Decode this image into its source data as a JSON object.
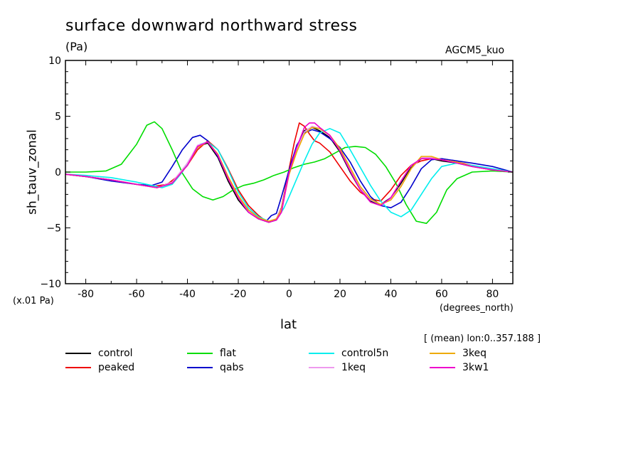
{
  "chart_data": {
    "type": "line",
    "title": "surface downward northward stress",
    "units": "(Pa)",
    "source_label": "AGCM5_kuo",
    "ylabel": "sh_tauv_zonal",
    "xlabel": "lat",
    "x_units": "(degrees_north)",
    "y_scale_note": "(x.01 Pa)",
    "stat_note": "[ (mean) lon:0..357.188 ]",
    "xlim": [
      -88,
      88
    ],
    "ylim": [
      -10,
      10
    ],
    "xticks": [
      -80,
      -60,
      -40,
      -20,
      0,
      20,
      40,
      60,
      80
    ],
    "xtick_labels": [
      "-80",
      "-60",
      "-40",
      "-20",
      "0",
      "20",
      "40",
      "60",
      "80"
    ],
    "yticks": [
      10,
      5,
      0,
      -5,
      -10
    ],
    "ytick_labels": [
      "10",
      "5",
      "0",
      "−5",
      "−10"
    ],
    "series": [
      {
        "name": "control",
        "color": "#000000",
        "x": [
          -88,
          -80,
          -70,
          -60,
          -52,
          -45,
          -40,
          -36,
          -32,
          -28,
          -24,
          -20,
          -16,
          -12,
          -8,
          -5,
          -3,
          0,
          3,
          6,
          9,
          12,
          16,
          20,
          24,
          28,
          32,
          36,
          40,
          44,
          48,
          52,
          56,
          60,
          66,
          72,
          80,
          88
        ],
        "y": [
          -0.2,
          -0.4,
          -0.7,
          -1.1,
          -1.4,
          -0.8,
          0.8,
          2.3,
          2.6,
          1.3,
          -0.8,
          -2.5,
          -3.6,
          -4.2,
          -4.5,
          -4.3,
          -3.2,
          0.2,
          2.3,
          3.7,
          4.0,
          3.7,
          3.1,
          1.8,
          0,
          -1.6,
          -2.6,
          -2.9,
          -2.3,
          -1.0,
          0.4,
          1.2,
          1.2,
          1.0,
          0.8,
          0.5,
          0.2,
          0
        ]
      },
      {
        "name": "peaked",
        "color": "#ee0000",
        "x": [
          -88,
          -80,
          -70,
          -60,
          -54,
          -48,
          -44,
          -40,
          -36,
          -32,
          -28,
          -24,
          -20,
          -16,
          -12,
          -9,
          -7,
          -5,
          -3,
          0,
          2,
          4,
          6,
          8,
          10,
          12,
          16,
          20,
          24,
          28,
          32,
          36,
          40,
          44,
          48,
          52,
          56,
          60,
          66,
          72,
          80,
          88
        ],
        "y": [
          -0.2,
          -0.4,
          -0.7,
          -1.1,
          -1.3,
          -1.1,
          -0.4,
          0.6,
          2.0,
          2.8,
          2.0,
          0.3,
          -1.6,
          -3.0,
          -3.9,
          -4.4,
          -4.4,
          -4.2,
          -3.2,
          0.3,
          2.6,
          4.4,
          4.1,
          3.4,
          2.8,
          2.6,
          1.8,
          0.5,
          -0.8,
          -1.8,
          -2.4,
          -2.6,
          -1.6,
          -0.3,
          0.6,
          1.0,
          1.2,
          1.1,
          0.9,
          0.6,
          0.2,
          0
        ]
      },
      {
        "name": "qabs",
        "color": "#0000cc",
        "x": [
          -88,
          -80,
          -70,
          -60,
          -54,
          -50,
          -46,
          -42,
          -38,
          -35,
          -32,
          -28,
          -24,
          -20,
          -16,
          -12,
          -9,
          -7,
          -5,
          -3,
          0,
          3,
          6,
          9,
          12,
          16,
          20,
          24,
          28,
          32,
          36,
          40,
          44,
          48,
          52,
          56,
          60,
          66,
          72,
          80,
          88
        ],
        "y": [
          -0.2,
          -0.4,
          -0.8,
          -1.1,
          -1.2,
          -0.9,
          0.5,
          2.0,
          3.1,
          3.3,
          2.8,
          1.4,
          -0.5,
          -2.2,
          -3.4,
          -4.1,
          -4.4,
          -3.9,
          -3.7,
          -2.2,
          0.2,
          2.4,
          3.5,
          3.8,
          3.6,
          3.0,
          2.2,
          0.9,
          -0.8,
          -2.2,
          -3.0,
          -3.2,
          -2.7,
          -1.3,
          0.3,
          1.1,
          1.2,
          1.0,
          0.8,
          0.5,
          0
        ]
      },
      {
        "name": "flat",
        "color": "#00dd00",
        "x": [
          -88,
          -80,
          -72,
          -66,
          -60,
          -56,
          -53,
          -50,
          -46,
          -42,
          -38,
          -34,
          -30,
          -26,
          -22,
          -18,
          -14,
          -10,
          -6,
          -2,
          2,
          6,
          10,
          14,
          18,
          22,
          26,
          30,
          34,
          38,
          42,
          46,
          50,
          54,
          58,
          62,
          66,
          72,
          80,
          88
        ],
        "y": [
          0,
          0,
          0.1,
          0.7,
          2.5,
          4.2,
          4.5,
          3.9,
          2.0,
          -0.1,
          -1.5,
          -2.2,
          -2.5,
          -2.2,
          -1.6,
          -1.2,
          -1.0,
          -0.7,
          -0.3,
          0,
          0.4,
          0.7,
          0.9,
          1.2,
          1.7,
          2.2,
          2.3,
          2.2,
          1.6,
          0.5,
          -1.0,
          -2.9,
          -4.4,
          -4.6,
          -3.6,
          -1.6,
          -0.6,
          0,
          0.1,
          0
        ]
      },
      {
        "name": "control5n",
        "color": "#00eeee",
        "x": [
          -88,
          -80,
          -70,
          -60,
          -54,
          -50,
          -46,
          -42,
          -38,
          -35,
          -32,
          -28,
          -24,
          -20,
          -16,
          -12,
          -8,
          -5,
          -2,
          0,
          3,
          6,
          9,
          12,
          16,
          20,
          24,
          28,
          32,
          36,
          40,
          44,
          48,
          52,
          56,
          60,
          66,
          72,
          80,
          88
        ],
        "y": [
          -0.2,
          -0.3,
          -0.5,
          -0.9,
          -1.2,
          -1.4,
          -1.1,
          0.0,
          1.5,
          2.5,
          2.7,
          2.0,
          0.2,
          -1.8,
          -3.2,
          -4.0,
          -4.4,
          -4.3,
          -3.2,
          -2.2,
          -0.6,
          1.0,
          2.5,
          3.5,
          3.9,
          3.5,
          2.0,
          0.4,
          -1.2,
          -2.6,
          -3.6,
          -4.0,
          -3.4,
          -2.0,
          -0.6,
          0.5,
          0.8,
          0.6,
          0.3,
          0
        ]
      },
      {
        "name": "1keq",
        "color": "#ee99ee",
        "x": [
          -88,
          -80,
          -70,
          -60,
          -52,
          -46,
          -40,
          -36,
          -32,
          -28,
          -24,
          -20,
          -16,
          -12,
          -8,
          -5,
          -3,
          0,
          3,
          6,
          9,
          12,
          16,
          20,
          24,
          28,
          32,
          36,
          40,
          44,
          48,
          52,
          56,
          60,
          66,
          72,
          80,
          88
        ],
        "y": [
          -0.2,
          -0.4,
          -0.7,
          -1.1,
          -1.4,
          -0.9,
          0.8,
          2.4,
          2.7,
          1.5,
          -0.5,
          -2.2,
          -3.5,
          -4.1,
          -4.4,
          -4.2,
          -3.3,
          0,
          2.0,
          3.6,
          4.1,
          3.9,
          3.2,
          2.0,
          0.2,
          -1.4,
          -2.5,
          -2.9,
          -2.4,
          -1.2,
          0.3,
          1.3,
          1.3,
          1.1,
          0.9,
          0.5,
          0.2,
          0
        ]
      },
      {
        "name": "3keq",
        "color": "#eeaa00",
        "x": [
          -88,
          -80,
          -70,
          -60,
          -52,
          -46,
          -40,
          -36,
          -32,
          -28,
          -24,
          -20,
          -16,
          -12,
          -8,
          -5,
          -3,
          0,
          3,
          6,
          9,
          12,
          16,
          20,
          24,
          28,
          32,
          36,
          40,
          44,
          48,
          52,
          56,
          60,
          66,
          72,
          80,
          88
        ],
        "y": [
          -0.2,
          -0.4,
          -0.7,
          -1.1,
          -1.4,
          -1.0,
          0.6,
          2.2,
          2.7,
          1.6,
          -0.4,
          -2.1,
          -3.4,
          -4.1,
          -4.4,
          -4.2,
          -3.4,
          -0.2,
          1.8,
          3.4,
          4.0,
          3.9,
          3.3,
          2.1,
          0.4,
          -1.3,
          -2.4,
          -2.9,
          -2.5,
          -1.3,
          0.3,
          1.4,
          1.4,
          1.1,
          0.9,
          0.5,
          0.2,
          0
        ]
      },
      {
        "name": "3kw1",
        "color": "#ee00cc",
        "x": [
          -88,
          -80,
          -70,
          -60,
          -52,
          -46,
          -40,
          -36,
          -32,
          -28,
          -24,
          -20,
          -16,
          -12,
          -8,
          -5,
          -3,
          0,
          3,
          6,
          8,
          10,
          12,
          16,
          20,
          24,
          28,
          32,
          36,
          40,
          44,
          48,
          52,
          56,
          60,
          66,
          72,
          80,
          88
        ],
        "y": [
          -0.2,
          -0.4,
          -0.7,
          -1.1,
          -1.4,
          -1.0,
          0.6,
          2.3,
          2.7,
          1.5,
          -0.6,
          -2.3,
          -3.6,
          -4.2,
          -4.5,
          -4.3,
          -3.6,
          0,
          2.2,
          4.0,
          4.4,
          4.4,
          4.0,
          3.3,
          1.9,
          0.1,
          -1.6,
          -2.7,
          -3.0,
          -2.3,
          -0.8,
          0.6,
          1.2,
          1.2,
          1.1,
          0.8,
          0.5,
          0.2,
          0
        ]
      }
    ]
  },
  "legend": [
    {
      "label": "control",
      "color": "#000000"
    },
    {
      "label": "peaked",
      "color": "#ee0000"
    },
    {
      "label": "flat",
      "color": "#00dd00"
    },
    {
      "label": "qabs",
      "color": "#0000cc"
    },
    {
      "label": "control5n",
      "color": "#00eeee"
    },
    {
      "label": "1keq",
      "color": "#ee99ee"
    },
    {
      "label": "3keq",
      "color": "#eeaa00"
    },
    {
      "label": "3kw1",
      "color": "#ee00cc"
    }
  ]
}
